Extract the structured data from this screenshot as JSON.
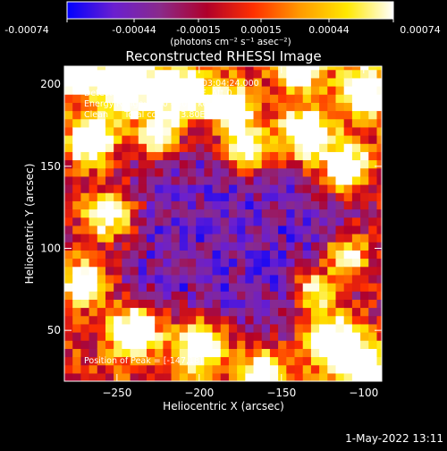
{
  "colorbar": {
    "ticks": [
      "-0.00074",
      "-0.00044",
      "-0.00015",
      "0.00015",
      "0.00044",
      "0.00074"
    ],
    "unit_label": "(photons cm⁻² s⁻¹ asec⁻²)",
    "stops": [
      "#0000ff",
      "#6a1fd0",
      "#8a2a8a",
      "#b0002a",
      "#ff3000",
      "#ff9a00",
      "#ffe800",
      "#ffffff"
    ]
  },
  "annotations": {
    "line1": "3-Aug-2005 03:03:04.000 to 03:04:24.000",
    "line2": "Detectors: 3F 4F 5F 6F 7F 8F, Att 0",
    "line3": "Energy Range: 25.0 - 50.0 keV",
    "line4": "Clean      Total counts: 3.80E+03",
    "peak": "Position of Peak = [-147,18]"
  },
  "footer": {
    "timestamp": "1-May-2022 13:11"
  },
  "chart_data": {
    "type": "heatmap",
    "title": "Reconstructed RHESSI Image",
    "xlabel": "Heliocentric X (arcsec)",
    "ylabel": "Heliocentric Y (arcsec)",
    "xlim": [
      -282,
      -89
    ],
    "ylim": [
      19,
      211
    ],
    "x_ticks": [
      -250,
      -200,
      -150,
      -100
    ],
    "y_ticks": [
      50,
      100,
      150,
      200
    ],
    "colorbar_range": [
      -0.00074,
      0.00074
    ],
    "peak_position": [
      -147,
      18
    ]
  }
}
